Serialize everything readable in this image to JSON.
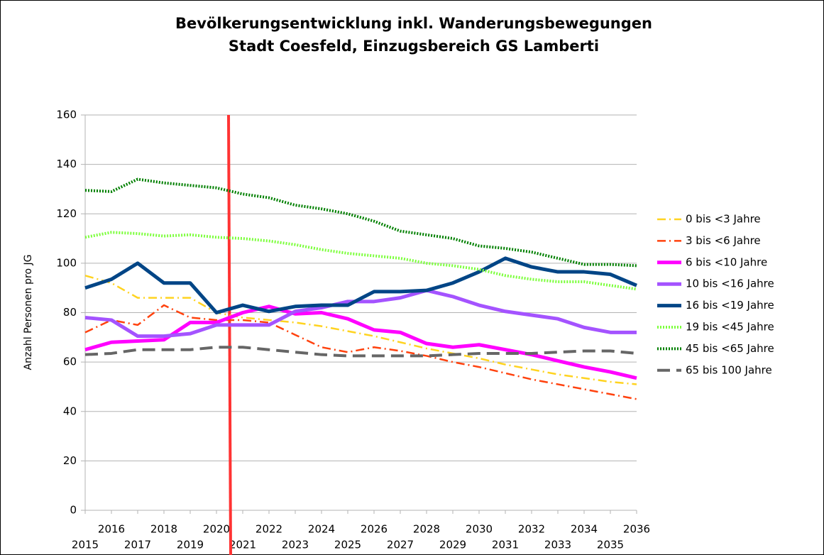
{
  "chart_data": {
    "type": "line",
    "title": "Bevölkerungsentwicklung inkl. Wanderungsbewegungen",
    "subtitle": "Stadt Coesfeld, Einzugsbereich GS Lamberti",
    "y_label": "Anzahl Personen pro JG",
    "categories": [
      "2015",
      "2016",
      "2017",
      "2018",
      "2019",
      "2020",
      "2021",
      "2022",
      "2023",
      "2024",
      "2025",
      "2026",
      "2027",
      "2028",
      "2029",
      "2030",
      "2031",
      "2032",
      "2033",
      "2034",
      "2035",
      "2036"
    ],
    "ylim": [
      0,
      160
    ],
    "yticks": [
      0,
      20,
      40,
      60,
      80,
      100,
      120,
      140,
      160
    ],
    "grid": true,
    "legend": "right",
    "series": [
      {
        "name": "0 bis <3 Jahre",
        "color": "#ffd320",
        "style": "dash-dot",
        "values": [
          95,
          92,
          86,
          86,
          86,
          80,
          78,
          77,
          76,
          74.5,
          72.5,
          70.5,
          68,
          65.5,
          63.5,
          61.5,
          59,
          57,
          55,
          53.5,
          52,
          51
        ]
      },
      {
        "name": "3 bis <6 Jahre",
        "color": "#ff420e",
        "style": "dash-dot",
        "values": [
          72,
          77,
          75,
          83,
          78,
          77,
          77,
          76,
          71,
          66,
          64,
          66,
          64.5,
          62.5,
          60,
          58,
          55.5,
          53,
          51,
          49,
          47,
          45
        ]
      },
      {
        "name": "6 bis <10 Jahre",
        "color": "#ff00ff",
        "style": "solid",
        "values": [
          65,
          68,
          68.5,
          69,
          76,
          76,
          80,
          82.5,
          79.5,
          80,
          77.5,
          73,
          72,
          67.5,
          66,
          67,
          65,
          63,
          60.5,
          58,
          56,
          53.5
        ]
      },
      {
        "name": "10 bis <16 Jahre",
        "color": "#a453ff",
        "style": "solid",
        "values": [
          78,
          77,
          70.5,
          70.5,
          71.5,
          75,
          75,
          75,
          80.5,
          82,
          84.5,
          84.5,
          86,
          89,
          86.5,
          83,
          80.5,
          79,
          77.5,
          74,
          72,
          72
        ]
      },
      {
        "name": "16 bis <19 Jahre",
        "color": "#004586",
        "style": "solid",
        "values": [
          90,
          93.5,
          100,
          92,
          92,
          80,
          83,
          80.5,
          82.5,
          83,
          83,
          88.5,
          88.5,
          89,
          92,
          96.5,
          102,
          98.5,
          96.5,
          96.5,
          95.5,
          91
        ]
      },
      {
        "name": "19 bis <45 Jahre",
        "color": "#7dff3d",
        "style": "dotted",
        "values": [
          110.5,
          112.5,
          112,
          111,
          111.5,
          110.5,
          110,
          109,
          107.5,
          105.5,
          104,
          103,
          102,
          100,
          99,
          97.5,
          95,
          93.5,
          92.5,
          92.5,
          91,
          89.5
        ]
      },
      {
        "name": "45 bis <65 Jahre",
        "color": "#008000",
        "style": "dotted",
        "values": [
          129.5,
          129,
          134,
          132.5,
          131.5,
          130.5,
          128,
          126.5,
          123.5,
          122,
          120,
          117,
          113,
          111.5,
          110,
          107,
          106,
          104.5,
          102,
          99.5,
          99.5,
          99
        ]
      },
      {
        "name": "65 bis 100 Jahre",
        "color": "#666666",
        "style": "dashed",
        "values": [
          63,
          63.5,
          65,
          65,
          65,
          66,
          66,
          65,
          64,
          63,
          62.5,
          62.5,
          62.5,
          62.5,
          63,
          63.5,
          63.5,
          63.5,
          64,
          64.5,
          64.5,
          63.5
        ]
      }
    ]
  }
}
